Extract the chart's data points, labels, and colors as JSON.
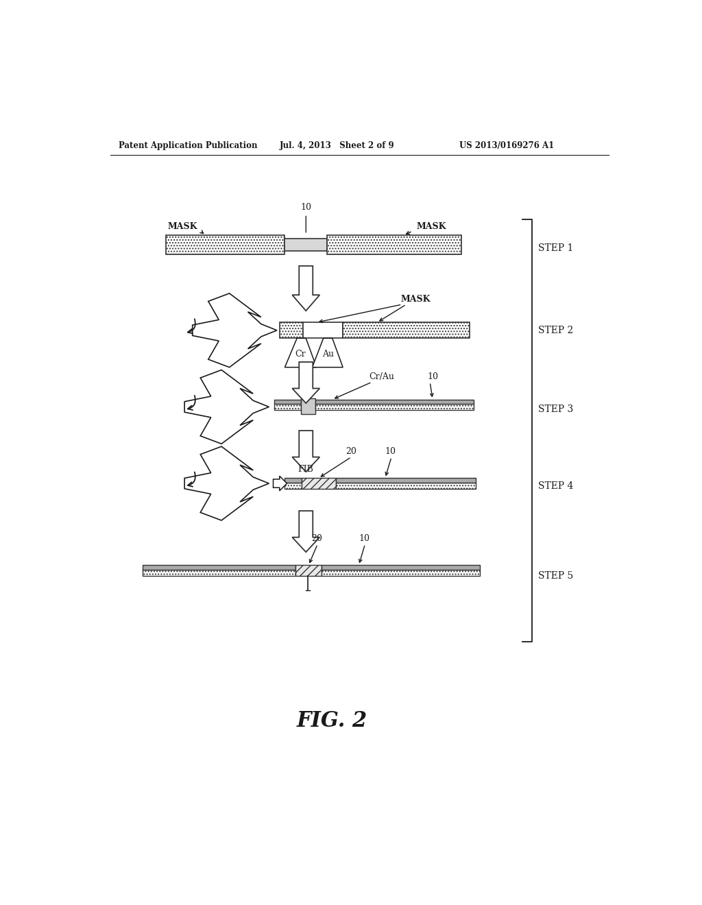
{
  "bg_color": "#ffffff",
  "header_left": "Patent Application Publication",
  "header_mid": "Jul. 4, 2013   Sheet 2 of 9",
  "header_right": "US 2013/0169276 A1",
  "fig_label": "FIG. 2",
  "steps": [
    "STEP 1",
    "STEP 2",
    "STEP 3",
    "STEP 4",
    "STEP 5"
  ],
  "line_color": "#1a1a1a"
}
